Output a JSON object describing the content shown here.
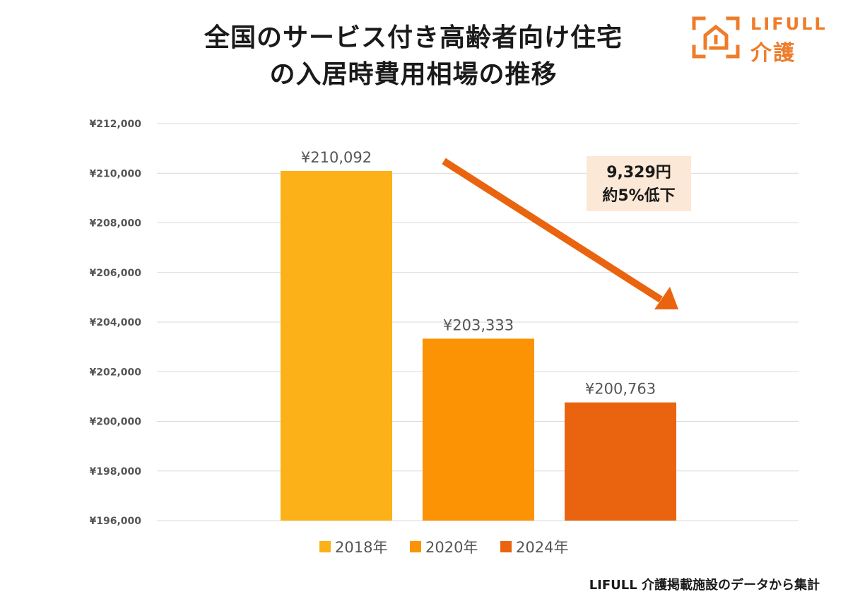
{
  "title_lines": [
    "全国のサービス付き高齢者向け住宅",
    "の入居時費用相場の推移"
  ],
  "logo": {
    "en": "LIFULL",
    "jp": "介護",
    "color": "#EE7D2B"
  },
  "footer": "LIFULL 介護掲載施設のデータから集計",
  "callout": {
    "line1": "9,329円",
    "line2": "約5%低下",
    "bg": "#FCE8D6",
    "arrow_color": "#EA6410"
  },
  "chart_data": {
    "type": "bar",
    "title": "全国のサービス付き高齢者向け住宅の入居時費用相場の推移",
    "categories": [
      "2018年",
      "2020年",
      "2024年"
    ],
    "values": [
      210092,
      203333,
      200763
    ],
    "value_labels": [
      "¥210,092",
      "¥203,333",
      "¥200,763"
    ],
    "colors": [
      "#FBB117",
      "#FB9305",
      "#EA6410"
    ],
    "ylim": [
      196000,
      212000
    ],
    "yticks": [
      196000,
      198000,
      200000,
      202000,
      204000,
      206000,
      208000,
      210000,
      212000
    ],
    "ytick_labels": [
      "¥196,000",
      "¥198,000",
      "¥200,000",
      "¥202,000",
      "¥204,000",
      "¥206,000",
      "¥208,000",
      "¥210,000",
      "¥212,000"
    ],
    "grid": true,
    "legend": "bottom",
    "xlabel": "",
    "ylabel": ""
  }
}
